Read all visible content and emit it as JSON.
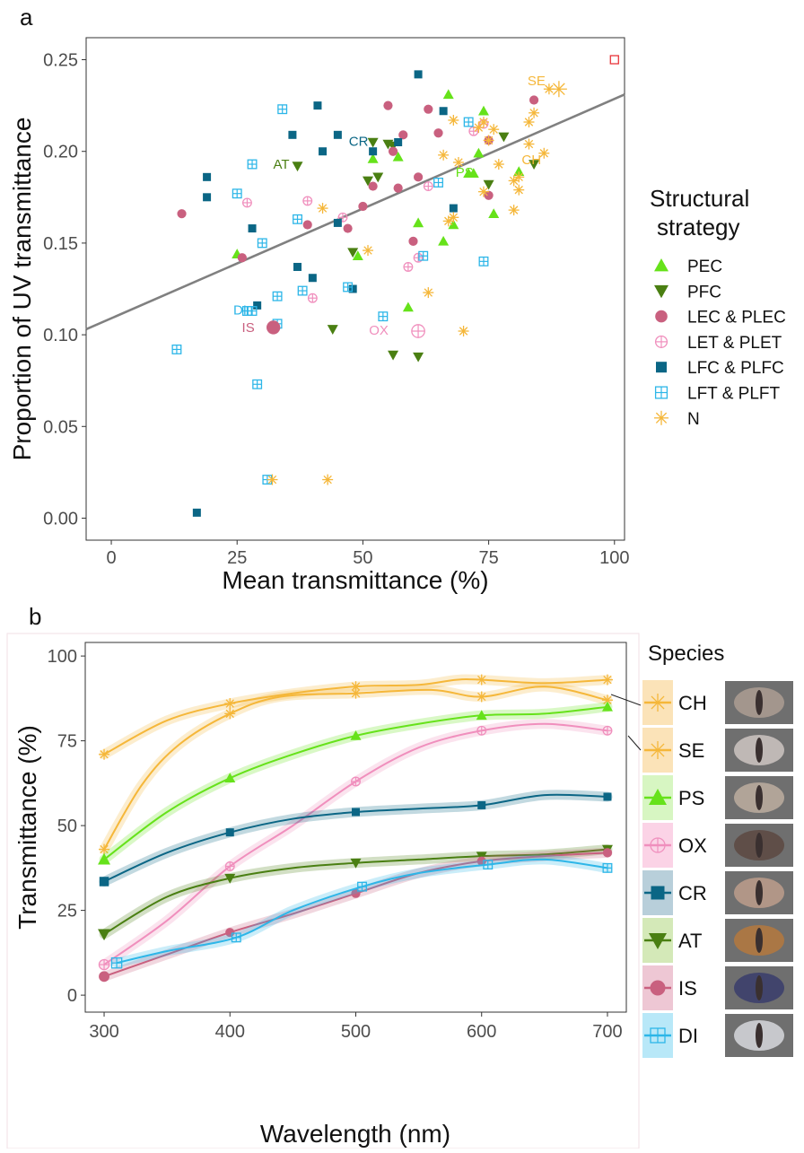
{
  "panel_a_label": "a",
  "panel_b_label": "b",
  "chart_data": [
    {
      "type": "scatter",
      "panel": "a",
      "xlabel": "Mean transmittance (%)",
      "ylabel": "Proportion of UV transmittance",
      "xlim": [
        -5,
        102
      ],
      "ylim": [
        -0.012,
        0.262
      ],
      "xticks": [
        0,
        25,
        50,
        75,
        100
      ],
      "yticks": [
        0.0,
        0.05,
        0.1,
        0.15,
        0.2,
        0.25
      ],
      "ytick_labels": [
        "0.00",
        "0.05",
        "0.10",
        "0.15",
        "0.20",
        "0.25"
      ],
      "grid": false,
      "legend_title": "Structural strategy",
      "legend_position": "right",
      "regression_line": {
        "x": [
          -5,
          102
        ],
        "y": [
          0.103,
          0.231
        ],
        "color": "#808080"
      },
      "series": [
        {
          "name": "PEC",
          "marker": "triangle-up",
          "color": "#66e21a",
          "points": [
            [
              25,
              0.144
            ],
            [
              49,
              0.143
            ],
            [
              52,
              0.196
            ],
            [
              57,
              0.197
            ],
            [
              59,
              0.115
            ],
            [
              61,
              0.161
            ],
            [
              66,
              0.151
            ],
            [
              67,
              0.231
            ],
            [
              68,
              0.16
            ],
            [
              71,
              0.188
            ],
            [
              72,
              0.188
            ],
            [
              73,
              0.199
            ],
            [
              74,
              0.222
            ],
            [
              76,
              0.166
            ],
            [
              81,
              0.189
            ]
          ]
        },
        {
          "name": "PFC",
          "marker": "triangle-down",
          "color": "#4a7f12",
          "points": [
            [
              37,
              0.192
            ],
            [
              44,
              0.103
            ],
            [
              48,
              0.145
            ],
            [
              51,
              0.184
            ],
            [
              52,
              0.205
            ],
            [
              53,
              0.186
            ],
            [
              55,
              0.204
            ],
            [
              56,
              0.089
            ],
            [
              56,
              0.203
            ],
            [
              61,
              0.088
            ],
            [
              75,
              0.182
            ],
            [
              78,
              0.208
            ],
            [
              84,
              0.193
            ]
          ]
        },
        {
          "name": "LEC & PLEC",
          "marker": "circle",
          "color": "#c9607f",
          "points": [
            [
              14,
              0.166
            ],
            [
              26,
              0.142
            ],
            [
              39,
              0.16
            ],
            [
              47,
              0.158
            ],
            [
              50,
              0.17
            ],
            [
              52,
              0.181
            ],
            [
              55,
              0.225
            ],
            [
              56,
              0.2
            ],
            [
              57,
              0.18
            ],
            [
              58,
              0.209
            ],
            [
              60,
              0.151
            ],
            [
              61,
              0.186
            ],
            [
              63,
              0.223
            ],
            [
              65,
              0.21
            ],
            [
              75,
              0.176
            ],
            [
              75,
              0.206
            ],
            [
              84,
              0.228
            ]
          ]
        },
        {
          "name": "LET & PLET",
          "marker": "circle-plus",
          "color": "#f08fbd",
          "points": [
            [
              27,
              0.172
            ],
            [
              39,
              0.173
            ],
            [
              40,
              0.12
            ],
            [
              46,
              0.164
            ],
            [
              59,
              0.137
            ],
            [
              61,
              0.142
            ],
            [
              63,
              0.181
            ],
            [
              72,
              0.211
            ],
            [
              74,
              0.215
            ]
          ]
        },
        {
          "name": "LFC & PLFC",
          "marker": "square",
          "color": "#0b6685",
          "points": [
            [
              17,
              0.003
            ],
            [
              19,
              0.186
            ],
            [
              19,
              0.175
            ],
            [
              28,
              0.158
            ],
            [
              29,
              0.116
            ],
            [
              36,
              0.209
            ],
            [
              37,
              0.137
            ],
            [
              40,
              0.131
            ],
            [
              41,
              0.225
            ],
            [
              42,
              0.2
            ],
            [
              45,
              0.161
            ],
            [
              45,
              0.209
            ],
            [
              48,
              0.125
            ],
            [
              52,
              0.2
            ],
            [
              57,
              0.205
            ],
            [
              61,
              0.242
            ],
            [
              66,
              0.222
            ],
            [
              68,
              0.169
            ]
          ]
        },
        {
          "name": "LFT & PLFT",
          "marker": "square-plus",
          "color": "#2db6e8",
          "points": [
            [
              13,
              0.092
            ],
            [
              25,
              0.177
            ],
            [
              27,
              0.113
            ],
            [
              28,
              0.193
            ],
            [
              28,
              0.113
            ],
            [
              29,
              0.073
            ],
            [
              30,
              0.15
            ],
            [
              31,
              0.021
            ],
            [
              33,
              0.106
            ],
            [
              33,
              0.121
            ],
            [
              34,
              0.223
            ],
            [
              37,
              0.163
            ],
            [
              38,
              0.124
            ],
            [
              47,
              0.126
            ],
            [
              54,
              0.11
            ],
            [
              62,
              0.143
            ],
            [
              65,
              0.183
            ],
            [
              71,
              0.216
            ],
            [
              74,
              0.14
            ]
          ]
        },
        {
          "name": "N",
          "marker": "asterisk",
          "color": "#f5b73a",
          "points": [
            [
              32,
              0.021
            ],
            [
              43,
              0.021
            ],
            [
              42,
              0.169
            ],
            [
              51,
              0.146
            ],
            [
              63,
              0.123
            ],
            [
              66,
              0.198
            ],
            [
              67,
              0.162
            ],
            [
              68,
              0.217
            ],
            [
              68,
              0.164
            ],
            [
              69,
              0.194
            ],
            [
              70,
              0.102
            ],
            [
              73,
              0.213
            ],
            [
              74,
              0.178
            ],
            [
              74,
              0.216
            ],
            [
              75,
              0.206
            ],
            [
              76,
              0.212
            ],
            [
              77,
              0.193
            ],
            [
              80,
              0.184
            ],
            [
              80,
              0.168
            ],
            [
              81,
              0.186
            ],
            [
              81,
              0.179
            ],
            [
              83,
              0.216
            ],
            [
              83,
              0.204
            ],
            [
              84,
              0.221
            ],
            [
              86,
              0.199
            ],
            [
              87,
              0.234
            ]
          ]
        },
        {
          "name": "",
          "marker": "square-open",
          "color": "#e8343a",
          "points": [
            [
              100,
              0.25
            ]
          ]
        }
      ],
      "annotations": [
        {
          "text": "SE",
          "x": 87,
          "y": 0.234,
          "color": "#f5b73a"
        },
        {
          "text": "CH",
          "x": 81,
          "y": 0.195,
          "color": "#f5b73a"
        },
        {
          "text": "PS",
          "x": 72,
          "y": 0.188,
          "color": "#66e21a"
        },
        {
          "text": "AT",
          "x": 37,
          "y": 0.192,
          "color": "#4a7f12"
        },
        {
          "text": "CR",
          "x": 52,
          "y": 0.201,
          "color": "#0b6685"
        },
        {
          "text": "OX",
          "x": 56,
          "y": 0.102,
          "color": "#f08fbd"
        },
        {
          "text": "IS",
          "x": 29,
          "y": 0.104,
          "color": "#c9607f"
        },
        {
          "text": "DI",
          "x": 27,
          "y": 0.113,
          "color": "#2db6e8"
        }
      ]
    },
    {
      "type": "line",
      "panel": "b",
      "xlabel": "Wavelength (nm)",
      "ylabel": "Transmittance (%)",
      "xlim": [
        285,
        715
      ],
      "ylim": [
        -5,
        104
      ],
      "xticks": [
        300,
        400,
        500,
        600,
        700
      ],
      "yticks": [
        0,
        25,
        50,
        75,
        100
      ],
      "grid": false,
      "legend_title": "Species",
      "legend_position": "right",
      "series": [
        {
          "name": "CH",
          "marker": "asterisk",
          "color": "#f5b73a",
          "x": [
            300,
            350,
            400,
            450,
            500,
            550,
            580,
            600,
            650,
            700
          ],
          "y": [
            71,
            81,
            86,
            89,
            91,
            91.5,
            93,
            93,
            92,
            93
          ]
        },
        {
          "name": "SE",
          "marker": "asterisk",
          "color": "#f5b73a",
          "x": [
            300,
            330,
            360,
            400,
            440,
            500,
            560,
            600,
            650,
            700
          ],
          "y": [
            43,
            62,
            74,
            83,
            88,
            89,
            90,
            88,
            91,
            87
          ]
        },
        {
          "name": "PS",
          "marker": "triangle-up",
          "color": "#66e21a",
          "x": [
            300,
            350,
            400,
            450,
            500,
            550,
            600,
            650,
            700
          ],
          "y": [
            40,
            54,
            64,
            71,
            76.5,
            80,
            82.5,
            83,
            85
          ]
        },
        {
          "name": "OX",
          "marker": "circle-plus",
          "color": "#f08fbd",
          "x": [
            300,
            350,
            400,
            450,
            500,
            550,
            600,
            650,
            700
          ],
          "y": [
            9,
            22,
            38,
            50,
            63,
            73,
            78,
            80,
            78
          ]
        },
        {
          "name": "CR",
          "marker": "square",
          "color": "#0b6685",
          "x": [
            300,
            350,
            400,
            450,
            500,
            550,
            600,
            650,
            700
          ],
          "y": [
            33.5,
            42,
            48,
            52,
            54,
            55,
            56,
            59,
            58.5
          ]
        },
        {
          "name": "AT",
          "marker": "triangle-down",
          "color": "#4a7f12",
          "x": [
            300,
            350,
            400,
            450,
            500,
            550,
            600,
            650,
            700
          ],
          "y": [
            18,
            29,
            34.5,
            37.5,
            39,
            40,
            41,
            41.5,
            43
          ]
        },
        {
          "name": "IS",
          "marker": "circle",
          "color": "#c9607f",
          "x": [
            300,
            350,
            400,
            450,
            500,
            550,
            600,
            650,
            700
          ],
          "y": [
            5.5,
            12,
            18.5,
            24,
            30,
            36,
            39.5,
            41,
            42
          ]
        },
        {
          "name": "DI",
          "marker": "square-plus",
          "color": "#2db6e8",
          "x": [
            310,
            350,
            405,
            450,
            505,
            550,
            605,
            650,
            700
          ],
          "y": [
            9.5,
            13,
            17,
            25,
            32,
            36,
            38.5,
            40,
            37.5
          ]
        }
      ]
    }
  ]
}
